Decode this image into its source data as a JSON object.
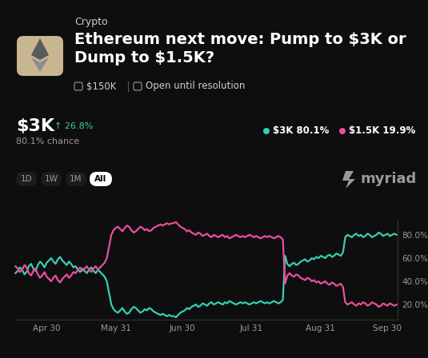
{
  "header": {
    "category": "Crypto",
    "title": "Ethereum next move: Pump to $3K or Dump to $1.5K?",
    "volume": "$150K",
    "status": "Open until resolution",
    "leading_outcome": "$3K",
    "change": "↑ 26.8%",
    "chance": "80.1% chance",
    "ranges": [
      "1D",
      "1W",
      "1M",
      "All"
    ],
    "selected_range": "All",
    "brand": "myriad"
  },
  "chart_data": {
    "type": "line",
    "categories": [
      null,
      null,
      null,
      null,
      null,
      null,
      null,
      null,
      null,
      null,
      null,
      null,
      null,
      null,
      "Apr 30",
      null,
      null,
      null,
      null,
      null,
      null,
      null,
      null,
      null,
      null,
      null,
      null,
      null,
      null,
      null,
      null,
      null,
      null,
      null,
      null,
      null,
      null,
      null,
      null,
      null,
      null,
      null,
      null,
      null,
      null,
      "May 31",
      null,
      null,
      null,
      null,
      null,
      null,
      null,
      null,
      null,
      null,
      null,
      null,
      null,
      null,
      null,
      null,
      null,
      null,
      null,
      null,
      null,
      null,
      null,
      null,
      null,
      null,
      null,
      null,
      null,
      "Jun 30",
      null,
      null,
      null,
      null,
      null,
      null,
      null,
      null,
      null,
      null,
      null,
      null,
      null,
      null,
      null,
      null,
      null,
      null,
      null,
      null,
      null,
      null,
      null,
      null,
      null,
      null,
      null,
      null,
      null,
      null,
      "Jul 31",
      null,
      null,
      null,
      null,
      null,
      null,
      null,
      null,
      null,
      null,
      null,
      null,
      null,
      null,
      null,
      null,
      null,
      null,
      null,
      null,
      null,
      null,
      null,
      null,
      null,
      null,
      null,
      null,
      null,
      null,
      "Aug 31",
      null,
      null,
      null,
      null,
      null,
      null,
      null,
      null,
      null,
      null,
      null,
      null,
      null,
      null,
      null,
      null,
      null,
      null,
      null,
      null,
      null,
      null,
      null,
      null,
      null,
      null,
      null,
      null,
      null,
      "Sep 30",
      null,
      null,
      null,
      null
    ],
    "series": [
      {
        "name": "$3K",
        "color": "#35d0b0",
        "chance_label": "80.1%",
        "values": [
          47,
          49,
          52,
          50,
          46,
          48,
          53,
          55,
          51,
          49,
          54,
          57,
          55,
          52,
          56,
          58,
          60,
          57,
          55,
          59,
          61,
          58,
          56,
          54,
          57,
          55,
          52,
          53,
          50,
          48,
          51,
          49,
          47,
          50,
          52,
          49,
          47,
          50,
          48,
          46,
          44,
          40,
          30,
          20,
          16,
          14,
          13,
          15,
          17,
          14,
          12,
          13,
          16,
          18,
          17,
          15,
          13,
          14,
          16,
          15,
          17,
          16,
          14,
          13,
          12,
          11,
          12,
          11,
          10,
          11,
          10,
          10,
          9,
          11,
          13,
          14,
          15,
          17,
          16,
          18,
          19,
          20,
          18,
          19,
          21,
          20,
          19,
          21,
          22,
          20,
          21,
          22,
          21,
          20,
          22,
          21,
          23,
          22,
          21,
          20,
          21,
          22,
          21,
          22,
          21,
          20,
          21,
          22,
          21,
          22,
          23,
          22,
          21,
          22,
          21,
          22,
          23,
          22,
          21,
          22,
          24,
          62,
          55,
          53,
          55,
          56,
          54,
          55,
          57,
          58,
          59,
          57,
          58,
          60,
          59,
          61,
          60,
          62,
          61,
          60,
          62,
          63,
          61,
          62,
          64,
          63,
          62,
          65,
          78,
          80,
          79,
          78,
          80,
          81,
          79,
          80,
          78,
          79,
          81,
          80,
          78,
          79,
          80,
          82,
          81,
          79,
          80,
          81,
          79,
          80,
          81,
          80.1
        ]
      },
      {
        "name": "$1.5K",
        "color": "#ec4e9d",
        "chance_label": "19.9%",
        "values": [
          53,
          51,
          48,
          50,
          54,
          52,
          47,
          45,
          49,
          51,
          46,
          43,
          45,
          48,
          44,
          42,
          40,
          43,
          45,
          41,
          39,
          42,
          44,
          46,
          43,
          45,
          48,
          47,
          50,
          52,
          49,
          51,
          53,
          50,
          48,
          51,
          53,
          50,
          52,
          54,
          56,
          60,
          70,
          80,
          84,
          86,
          87,
          85,
          83,
          86,
          88,
          87,
          84,
          82,
          83,
          85,
          87,
          86,
          84,
          85,
          83,
          84,
          86,
          87,
          88,
          89,
          88,
          89,
          90,
          89,
          90,
          90,
          91,
          89,
          87,
          86,
          85,
          83,
          84,
          82,
          81,
          80,
          82,
          81,
          79,
          80,
          81,
          79,
          78,
          80,
          79,
          78,
          79,
          80,
          78,
          79,
          77,
          78,
          79,
          80,
          79,
          78,
          79,
          78,
          79,
          80,
          79,
          78,
          79,
          78,
          77,
          78,
          79,
          78,
          79,
          78,
          77,
          78,
          79,
          78,
          76,
          38,
          45,
          47,
          45,
          44,
          46,
          45,
          43,
          42,
          41,
          43,
          42,
          40,
          41,
          39,
          40,
          38,
          39,
          40,
          38,
          37,
          39,
          38,
          36,
          37,
          38,
          35,
          22,
          20,
          21,
          22,
          20,
          19,
          21,
          20,
          22,
          21,
          19,
          20,
          22,
          21,
          20,
          18,
          19,
          21,
          20,
          19,
          21,
          20,
          19,
          19.9
        ]
      }
    ],
    "ylim": [
      7,
      93
    ],
    "yticks": [
      {
        "value": 20,
        "label": "20.0%"
      },
      {
        "value": 40,
        "label": "40.0%"
      },
      {
        "value": 60,
        "label": "60.0%"
      },
      {
        "value": 80,
        "label": "80.0%"
      }
    ],
    "grid": false
  }
}
